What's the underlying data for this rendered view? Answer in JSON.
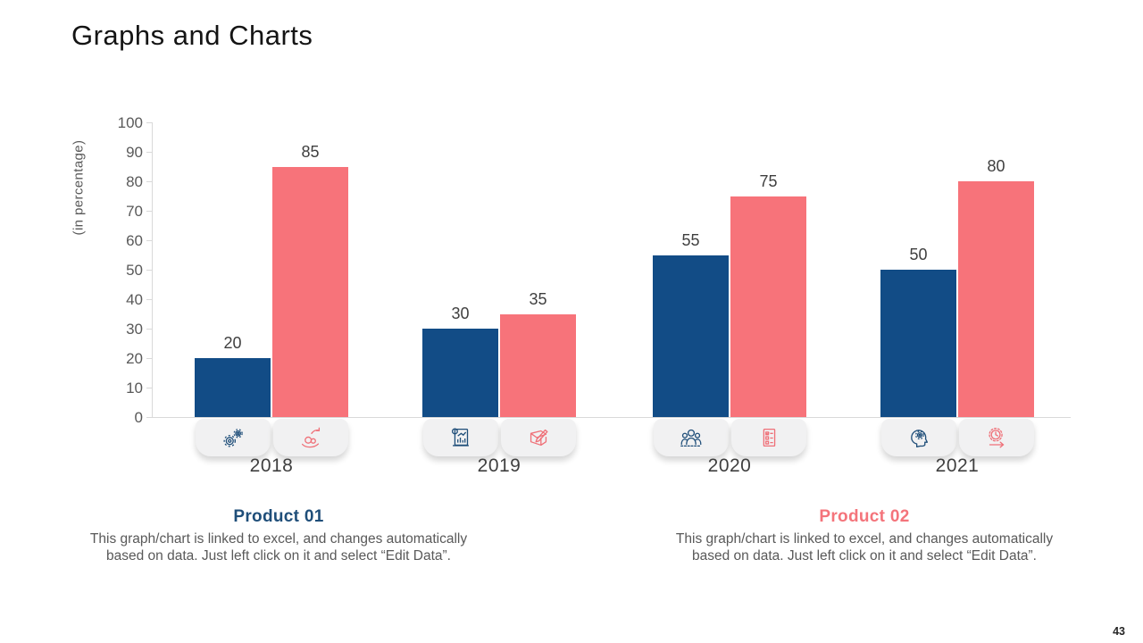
{
  "slide": {
    "title": "Graphs and Charts",
    "page_number": "43"
  },
  "chart_data": {
    "type": "bar",
    "title": "Graphs and Charts",
    "xlabel": "",
    "ylabel": "(in percentage)",
    "ylim": [
      0,
      100
    ],
    "ytick_step": 10,
    "grid": false,
    "legend_position": "none",
    "value_labels": true,
    "categories": [
      "2018",
      "2019",
      "2020",
      "2021"
    ],
    "series": [
      {
        "name": "Product 01",
        "color": "#124c86",
        "icon_color": "#1f4e79",
        "values": [
          20,
          30,
          55,
          50
        ]
      },
      {
        "name": "Product 02",
        "color": "#f7737a",
        "icon_color": "#ef7078",
        "values": [
          85,
          35,
          75,
          80
        ]
      }
    ]
  },
  "badge_icons": [
    [
      "gears-icon",
      "profit-hand-icon"
    ],
    [
      "financial-report-icon",
      "sketch-edit-icon"
    ],
    [
      "team-icon",
      "checklist-icon"
    ],
    [
      "mind-gear-icon",
      "time-process-icon"
    ]
  ],
  "captions": {
    "product1": {
      "heading": "Product 01",
      "heading_color": "#1f4e79",
      "body": "This graph/chart is linked to excel, and changes automatically based on data. Just left click on it and select “Edit Data”."
    },
    "product2": {
      "heading": "Product 02",
      "heading_color": "#f4747b",
      "body": "This graph/chart is linked to excel, and changes automatically based on data. Just left click on it and select “Edit Data”."
    }
  }
}
